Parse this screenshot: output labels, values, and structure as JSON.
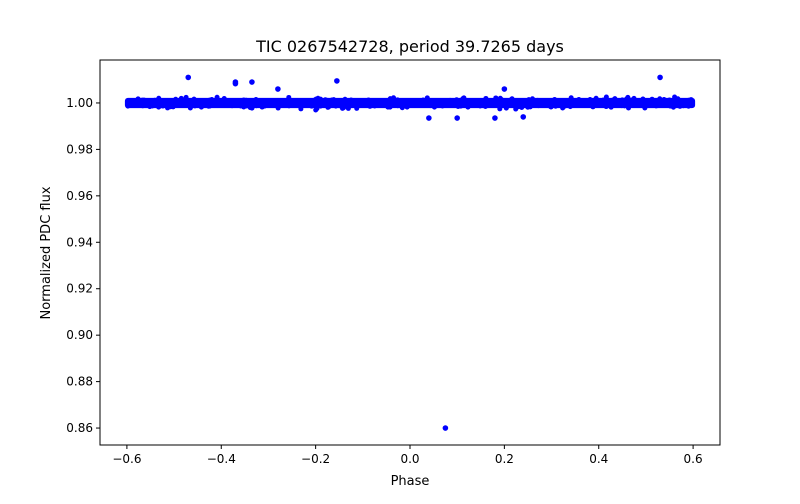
{
  "chart_data": {
    "type": "scatter",
    "title": "TIC 0267542728, period 39.7265 days",
    "xlabel": "Phase",
    "ylabel": "Normalized PDC flux",
    "xlim": [
      -0.657,
      0.657
    ],
    "ylim": [
      0.8527,
      1.0185
    ],
    "xticks": [
      -0.6,
      -0.4,
      -0.2,
      0.0,
      0.2,
      0.4,
      0.6
    ],
    "xtick_labels": [
      "−0.6",
      "−0.4",
      "−0.2",
      "0.0",
      "0.2",
      "0.4",
      "0.6"
    ],
    "yticks": [
      0.86,
      0.88,
      0.9,
      0.92,
      0.94,
      0.96,
      0.98,
      1.0
    ],
    "ytick_labels": [
      "0.86",
      "0.88",
      "0.90",
      "0.92",
      "0.94",
      "0.96",
      "0.98",
      "1.00"
    ],
    "grid": false,
    "marker_color": "#0000ff",
    "dense_band": {
      "x_range": [
        -0.6,
        0.6
      ],
      "y_center": 1.0,
      "y_halfwidth": 0.0022
    },
    "outliers": [
      {
        "x": -0.47,
        "y": 1.011
      },
      {
        "x": 0.53,
        "y": 1.011
      },
      {
        "x": -0.37,
        "y": 1.009
      },
      {
        "x": -0.37,
        "y": 1.0083
      },
      {
        "x": -0.335,
        "y": 1.009
      },
      {
        "x": -0.155,
        "y": 1.0095
      },
      {
        "x": -0.28,
        "y": 1.006
      },
      {
        "x": 0.2,
        "y": 1.006
      },
      {
        "x": 0.04,
        "y": 0.9935
      },
      {
        "x": 0.1,
        "y": 0.9935
      },
      {
        "x": 0.18,
        "y": 0.9935
      },
      {
        "x": 0.24,
        "y": 0.994
      },
      {
        "x": 0.075,
        "y": 0.86
      }
    ]
  }
}
